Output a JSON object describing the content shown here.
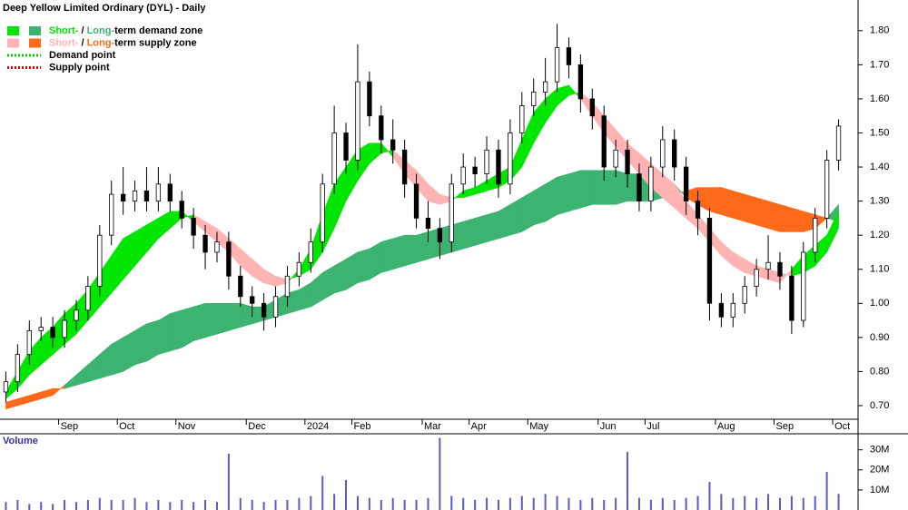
{
  "chart_data": {
    "type": "candlestick",
    "title": "Deep Yellow Limited Ordinary (DYL) - Daily",
    "legend": [
      {
        "short": "Short-",
        "sep": " / ",
        "long": "Long-",
        "rest": "term demand zone"
      },
      {
        "short": "Short-",
        "sep": " / ",
        "long": "Long-",
        "rest": "term supply zone"
      },
      {
        "label": "Demand point"
      },
      {
        "label": "Supply point"
      }
    ],
    "colors": {
      "short_demand": "#00e600",
      "long_demand": "#3cb371",
      "short_supply": "#ffb3b3",
      "long_supply": "#ff6a1a",
      "demand_point": "#00cc00",
      "supply_point": "#e00000",
      "volume": "#5a5ac8"
    },
    "categories": [
      null,
      null,
      null,
      null,
      null,
      "Sep",
      null,
      null,
      null,
      null,
      "Oct",
      null,
      null,
      null,
      null,
      "Nov",
      null,
      null,
      null,
      null,
      null,
      "Dec",
      null,
      null,
      null,
      null,
      "2024",
      null,
      null,
      null,
      "Feb",
      null,
      null,
      null,
      null,
      null,
      "Mar",
      null,
      null,
      null,
      "Apr",
      null,
      null,
      null,
      null,
      "May",
      null,
      null,
      null,
      null,
      null,
      "Jun",
      null,
      null,
      null,
      "Jul",
      null,
      null,
      null,
      null,
      null,
      "Aug",
      null,
      null,
      null,
      null,
      "Sep",
      null,
      null,
      null,
      null,
      "Oct"
    ],
    "open": [
      0.74,
      0.77,
      0.85,
      0.92,
      0.93,
      0.9,
      0.95,
      0.98,
      1.05,
      1.2,
      1.32,
      1.3,
      1.33,
      1.3,
      1.35,
      1.3,
      1.25,
      1.2,
      1.15,
      1.18,
      1.08,
      1.02,
      1.0,
      0.96,
      1.02,
      1.08,
      1.12,
      1.18,
      1.35,
      1.5,
      1.42,
      1.65,
      1.55,
      1.48,
      1.45,
      1.35,
      1.25,
      1.22,
      1.18,
      1.35,
      1.4,
      1.38,
      1.45,
      1.35,
      1.5,
      1.58,
      1.62,
      1.65,
      1.75,
      1.7,
      1.6,
      1.55,
      1.4,
      1.45,
      1.38,
      1.3,
      1.4,
      1.48,
      1.4,
      1.3,
      1.25,
      1.0,
      0.96,
      1.0,
      1.05,
      1.1,
      1.12,
      1.08,
      0.95,
      1.15,
      1.25,
      1.42
    ],
    "high": [
      0.8,
      0.88,
      0.95,
      0.96,
      0.96,
      0.98,
      1.01,
      1.08,
      1.23,
      1.36,
      1.4,
      1.36,
      1.4,
      1.4,
      1.38,
      1.33,
      1.28,
      1.23,
      1.21,
      1.21,
      1.11,
      1.05,
      1.03,
      1.05,
      1.11,
      1.15,
      1.22,
      1.38,
      1.58,
      1.53,
      1.76,
      1.68,
      1.58,
      1.54,
      1.48,
      1.38,
      1.3,
      1.25,
      1.38,
      1.44,
      1.43,
      1.49,
      1.48,
      1.54,
      1.62,
      1.66,
      1.72,
      1.82,
      1.78,
      1.73,
      1.63,
      1.58,
      1.48,
      1.48,
      1.41,
      1.43,
      1.52,
      1.51,
      1.43,
      1.33,
      1.28,
      1.03,
      1.03,
      1.08,
      1.13,
      1.2,
      1.15,
      1.11,
      1.18,
      1.28,
      1.45,
      1.54
    ],
    "low": [
      0.71,
      0.74,
      0.82,
      0.89,
      0.87,
      0.87,
      0.92,
      0.95,
      1.02,
      1.17,
      1.26,
      1.27,
      1.27,
      1.27,
      1.27,
      1.22,
      1.16,
      1.1,
      1.12,
      1.04,
      0.99,
      0.96,
      0.92,
      0.93,
      0.99,
      1.05,
      1.09,
      1.15,
      1.32,
      1.38,
      1.39,
      1.52,
      1.44,
      1.41,
      1.31,
      1.22,
      1.18,
      1.13,
      1.15,
      1.32,
      1.34,
      1.35,
      1.31,
      1.32,
      1.47,
      1.55,
      1.58,
      1.62,
      1.66,
      1.56,
      1.51,
      1.36,
      1.37,
      1.34,
      1.27,
      1.27,
      1.37,
      1.36,
      1.26,
      1.2,
      0.95,
      0.93,
      0.93,
      0.97,
      1.02,
      1.07,
      1.04,
      0.91,
      0.93,
      1.12,
      1.22,
      1.39
    ],
    "close": [
      0.77,
      0.85,
      0.92,
      0.93,
      0.9,
      0.95,
      0.98,
      1.05,
      1.2,
      1.32,
      1.3,
      1.33,
      1.3,
      1.35,
      1.3,
      1.25,
      1.2,
      1.15,
      1.18,
      1.08,
      1.02,
      1.0,
      0.96,
      1.02,
      1.08,
      1.12,
      1.18,
      1.35,
      1.5,
      1.42,
      1.65,
      1.55,
      1.48,
      1.45,
      1.35,
      1.25,
      1.22,
      1.18,
      1.35,
      1.4,
      1.38,
      1.45,
      1.35,
      1.5,
      1.58,
      1.62,
      1.65,
      1.75,
      1.7,
      1.6,
      1.55,
      1.4,
      1.45,
      1.38,
      1.3,
      1.4,
      1.48,
      1.4,
      1.3,
      1.25,
      1.0,
      0.96,
      1.0,
      1.05,
      1.1,
      1.12,
      1.08,
      0.95,
      1.15,
      1.25,
      1.42,
      1.52
    ],
    "short_fast": [
      0.74,
      0.8,
      0.86,
      0.9,
      0.93,
      0.97,
      1.0,
      1.04,
      1.09,
      1.14,
      1.19,
      1.21,
      1.23,
      1.25,
      1.27,
      1.27,
      1.24,
      1.21,
      1.18,
      1.15,
      1.11,
      1.08,
      1.06,
      1.05,
      1.06,
      1.1,
      1.16,
      1.26,
      1.35,
      1.4,
      1.45,
      1.47,
      1.47,
      1.43,
      1.38,
      1.34,
      1.3,
      1.29,
      1.3,
      1.33,
      1.34,
      1.36,
      1.38,
      1.4,
      1.48,
      1.56,
      1.6,
      1.63,
      1.64,
      1.6,
      1.55,
      1.5,
      1.46,
      1.42,
      1.38,
      1.34,
      1.31,
      1.28,
      1.25,
      1.22,
      1.18,
      1.14,
      1.11,
      1.09,
      1.08,
      1.07,
      1.06,
      1.1,
      1.14,
      1.17,
      1.2,
      1.27
    ],
    "short_slow": [
      0.72,
      0.75,
      0.79,
      0.82,
      0.85,
      0.88,
      0.91,
      0.95,
      0.99,
      1.03,
      1.07,
      1.11,
      1.15,
      1.19,
      1.22,
      1.25,
      1.26,
      1.24,
      1.22,
      1.19,
      1.16,
      1.13,
      1.1,
      1.08,
      1.07,
      1.08,
      1.1,
      1.15,
      1.22,
      1.3,
      1.36,
      1.41,
      1.44,
      1.45,
      1.42,
      1.39,
      1.35,
      1.32,
      1.31,
      1.31,
      1.32,
      1.33,
      1.34,
      1.36,
      1.4,
      1.47,
      1.53,
      1.58,
      1.61,
      1.62,
      1.59,
      1.55,
      1.51,
      1.47,
      1.44,
      1.41,
      1.38,
      1.35,
      1.3,
      1.26,
      1.22,
      1.18,
      1.15,
      1.13,
      1.11,
      1.1,
      1.09,
      1.08,
      1.09,
      1.11,
      1.15,
      1.22
    ],
    "long_fast": [
      0.69,
      0.7,
      0.71,
      0.72,
      0.73,
      0.76,
      0.79,
      0.82,
      0.85,
      0.88,
      0.9,
      0.92,
      0.94,
      0.95,
      0.97,
      0.98,
      0.99,
      1.0,
      1.0,
      1.0,
      1.0,
      0.99,
      0.99,
      1.01,
      1.03,
      1.04,
      1.06,
      1.09,
      1.11,
      1.13,
      1.15,
      1.16,
      1.18,
      1.19,
      1.2,
      1.2,
      1.21,
      1.22,
      1.23,
      1.24,
      1.25,
      1.26,
      1.27,
      1.29,
      1.31,
      1.33,
      1.35,
      1.37,
      1.38,
      1.39,
      1.39,
      1.39,
      1.39,
      1.38,
      1.38,
      1.38,
      1.37,
      1.35,
      1.31,
      1.29,
      1.27,
      1.26,
      1.25,
      1.24,
      1.23,
      1.22,
      1.21,
      1.21,
      1.21,
      1.22,
      1.25,
      1.29
    ],
    "long_slow": [
      0.71,
      0.72,
      0.73,
      0.74,
      0.75,
      0.75,
      0.76,
      0.77,
      0.78,
      0.79,
      0.8,
      0.82,
      0.83,
      0.85,
      0.86,
      0.87,
      0.89,
      0.9,
      0.91,
      0.92,
      0.93,
      0.94,
      0.95,
      0.96,
      0.97,
      0.98,
      0.99,
      1.01,
      1.03,
      1.04,
      1.06,
      1.07,
      1.09,
      1.1,
      1.11,
      1.12,
      1.13,
      1.14,
      1.15,
      1.16,
      1.17,
      1.18,
      1.19,
      1.2,
      1.21,
      1.23,
      1.24,
      1.26,
      1.27,
      1.28,
      1.29,
      1.29,
      1.29,
      1.3,
      1.3,
      1.3,
      1.31,
      1.32,
      1.33,
      1.34,
      1.34,
      1.34,
      1.33,
      1.32,
      1.31,
      1.3,
      1.29,
      1.28,
      1.27,
      1.26,
      1.25,
      1.24
    ],
    "ylim": [
      0.66,
      1.89
    ],
    "yticks": [
      {
        "value": 0.7,
        "label": "0.70"
      },
      {
        "value": 0.8,
        "label": "0.80"
      },
      {
        "value": 0.9,
        "label": "0.90"
      },
      {
        "value": 1.0,
        "label": "1.00"
      },
      {
        "value": 1.1,
        "label": "1.10"
      },
      {
        "value": 1.2,
        "label": "1.20"
      },
      {
        "value": 1.3,
        "label": "1.30"
      },
      {
        "value": 1.4,
        "label": "1.40"
      },
      {
        "value": 1.5,
        "label": "1.50"
      },
      {
        "value": 1.6,
        "label": "1.60"
      },
      {
        "value": 1.7,
        "label": "1.70"
      },
      {
        "value": 1.8,
        "label": "1.80"
      }
    ],
    "volume_title": "Volume",
    "volume": [
      4,
      5,
      3,
      4,
      3,
      5,
      4,
      5,
      6,
      5,
      5,
      6,
      4,
      5,
      4,
      5,
      4,
      5,
      4,
      28,
      6,
      5,
      4,
      5,
      5,
      6,
      7,
      17,
      8,
      15,
      7,
      6,
      5,
      6,
      5,
      5,
      6,
      36,
      7,
      6,
      5,
      6,
      5,
      6,
      7,
      6,
      8,
      7,
      6,
      5,
      6,
      5,
      6,
      29,
      6,
      5,
      6,
      5,
      6,
      7,
      14,
      8,
      6,
      7,
      6,
      8,
      6,
      7,
      6,
      7,
      19,
      8
    ],
    "volume_ylim": [
      0,
      38
    ],
    "volume_yticks": [
      {
        "value": 10,
        "label": "10M"
      },
      {
        "value": 20,
        "label": "20M"
      },
      {
        "value": 30,
        "label": "30M"
      }
    ]
  }
}
